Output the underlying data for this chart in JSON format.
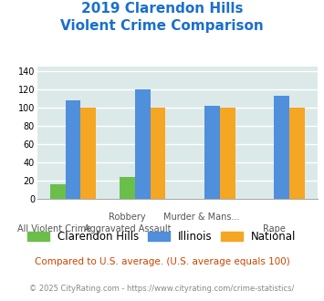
{
  "title_line1": "2019 Clarendon Hills",
  "title_line2": "Violent Crime Comparison",
  "title_color": "#1a6fcc",
  "top_labels": [
    "",
    "Robbery",
    "Murder & Mans...",
    ""
  ],
  "bot_labels": [
    "All Violent Crime",
    "Aggravated Assault",
    "",
    "Rape"
  ],
  "clarendon_hills": [
    16,
    24,
    0,
    0
  ],
  "illinois": [
    108,
    120,
    102,
    113
  ],
  "national": [
    100,
    100,
    100,
    100
  ],
  "colors": {
    "clarendon": "#6abf4b",
    "illinois": "#4f8fdc",
    "national": "#f5a623"
  },
  "ylim": [
    0,
    145
  ],
  "yticks": [
    0,
    20,
    40,
    60,
    80,
    100,
    120,
    140
  ],
  "background_color": "#dce9e9",
  "grid_color": "#ffffff",
  "legend_labels": [
    "Clarendon Hills",
    "Illinois",
    "National"
  ],
  "footnote1": "Compared to U.S. average. (U.S. average equals 100)",
  "footnote2": "© 2025 CityRating.com - https://www.cityrating.com/crime-statistics/",
  "footnote1_color": "#cc4400",
  "footnote2_color": "#888888"
}
